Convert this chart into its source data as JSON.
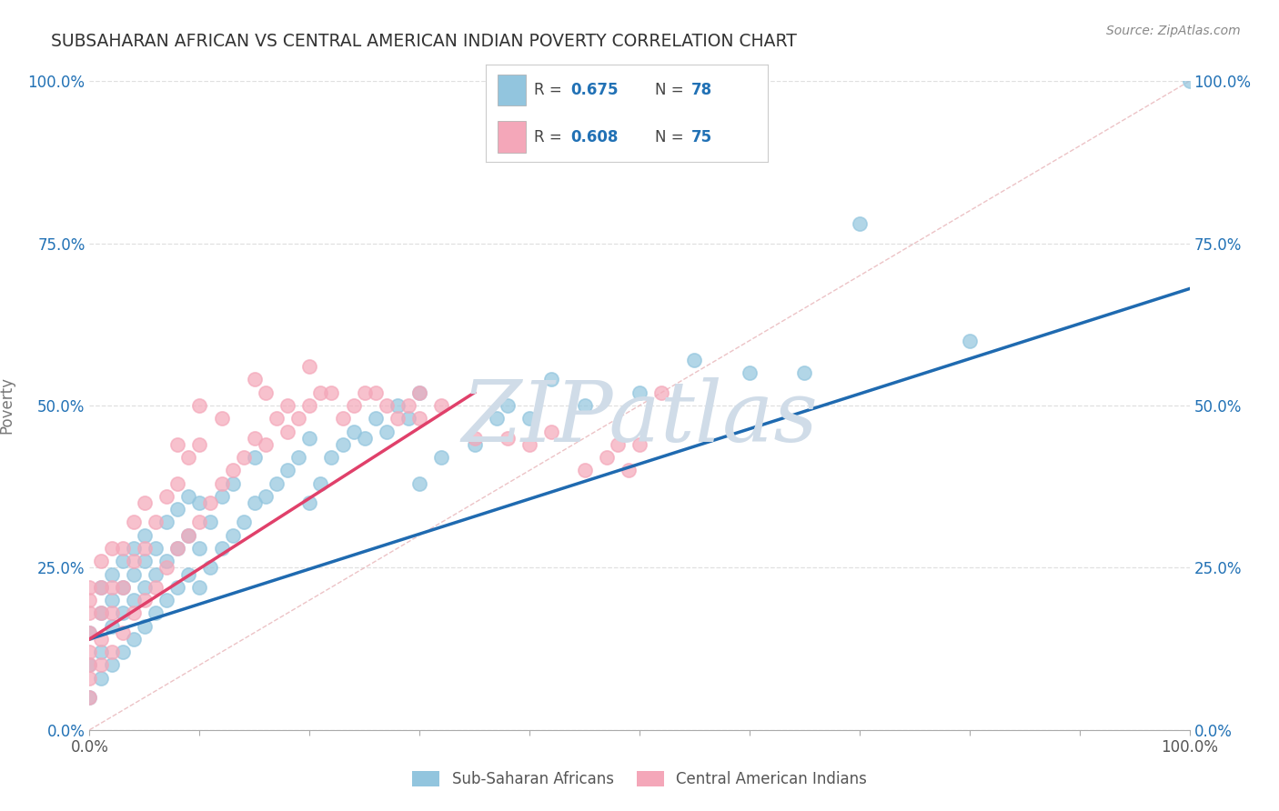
{
  "title": "SUBSAHARAN AFRICAN VS CENTRAL AMERICAN INDIAN POVERTY CORRELATION CHART",
  "source": "Source: ZipAtlas.com",
  "ylabel": "Poverty",
  "ytick_values": [
    0,
    25,
    50,
    75,
    100
  ],
  "xlim": [
    0,
    100
  ],
  "ylim": [
    0,
    100
  ],
  "legend_label_blue": "Sub-Saharan Africans",
  "legend_label_pink": "Central American Indians",
  "color_blue": "#92c5de",
  "color_pink": "#f4a7b9",
  "color_blue_line": "#1f6ab0",
  "color_pink_line": "#e0406a",
  "color_blue_text": "#2171b5",
  "color_diag": "#c8c8c8",
  "watermark_color": "#d0dce8",
  "background_color": "#ffffff",
  "grid_color": "#e0e0e0",
  "blue_scatter_x": [
    0,
    0,
    0,
    1,
    1,
    1,
    1,
    2,
    2,
    2,
    2,
    3,
    3,
    3,
    3,
    4,
    4,
    4,
    4,
    5,
    5,
    5,
    5,
    6,
    6,
    6,
    7,
    7,
    7,
    8,
    8,
    8,
    9,
    9,
    9,
    10,
    10,
    10,
    11,
    11,
    12,
    12,
    13,
    13,
    14,
    15,
    15,
    16,
    17,
    18,
    19,
    20,
    20,
    21,
    22,
    23,
    24,
    25,
    26,
    27,
    28,
    29,
    30,
    30,
    32,
    35,
    37,
    38,
    40,
    42,
    45,
    50,
    55,
    60,
    65,
    70,
    80,
    100
  ],
  "blue_scatter_y": [
    5,
    10,
    15,
    8,
    12,
    18,
    22,
    10,
    16,
    20,
    24,
    12,
    18,
    22,
    26,
    14,
    20,
    24,
    28,
    16,
    22,
    26,
    30,
    18,
    24,
    28,
    20,
    26,
    32,
    22,
    28,
    34,
    24,
    30,
    36,
    22,
    28,
    35,
    25,
    32,
    28,
    36,
    30,
    38,
    32,
    35,
    42,
    36,
    38,
    40,
    42,
    35,
    45,
    38,
    42,
    44,
    46,
    45,
    48,
    46,
    50,
    48,
    38,
    52,
    42,
    44,
    48,
    50,
    48,
    54,
    50,
    52,
    57,
    55,
    55,
    78,
    60,
    100
  ],
  "pink_scatter_x": [
    0,
    0,
    0,
    0,
    0,
    0,
    0,
    0,
    1,
    1,
    1,
    1,
    1,
    2,
    2,
    2,
    2,
    3,
    3,
    3,
    4,
    4,
    4,
    5,
    5,
    5,
    6,
    6,
    7,
    7,
    8,
    8,
    8,
    9,
    9,
    10,
    10,
    10,
    11,
    12,
    12,
    13,
    14,
    15,
    15,
    16,
    16,
    17,
    18,
    18,
    19,
    20,
    20,
    21,
    22,
    23,
    24,
    25,
    26,
    27,
    28,
    29,
    30,
    30,
    32,
    35,
    38,
    40,
    42,
    45,
    47,
    48,
    49,
    50,
    52
  ],
  "pink_scatter_y": [
    5,
    8,
    10,
    12,
    15,
    18,
    20,
    22,
    10,
    14,
    18,
    22,
    26,
    12,
    18,
    22,
    28,
    15,
    22,
    28,
    18,
    26,
    32,
    20,
    28,
    35,
    22,
    32,
    25,
    36,
    28,
    38,
    44,
    30,
    42,
    32,
    44,
    50,
    35,
    38,
    48,
    40,
    42,
    45,
    54,
    44,
    52,
    48,
    46,
    50,
    48,
    50,
    56,
    52,
    52,
    48,
    50,
    52,
    52,
    50,
    48,
    50,
    52,
    48,
    50,
    45,
    45,
    44,
    46,
    40,
    42,
    44,
    40,
    44,
    52
  ],
  "blue_line_x": [
    0,
    100
  ],
  "blue_line_y": [
    14,
    68
  ],
  "pink_line_x": [
    0,
    35
  ],
  "pink_line_y": [
    14,
    52
  ],
  "diag_line_x": [
    0,
    100
  ],
  "diag_line_y": [
    0,
    100
  ],
  "watermark_text": "ZIPatlas"
}
